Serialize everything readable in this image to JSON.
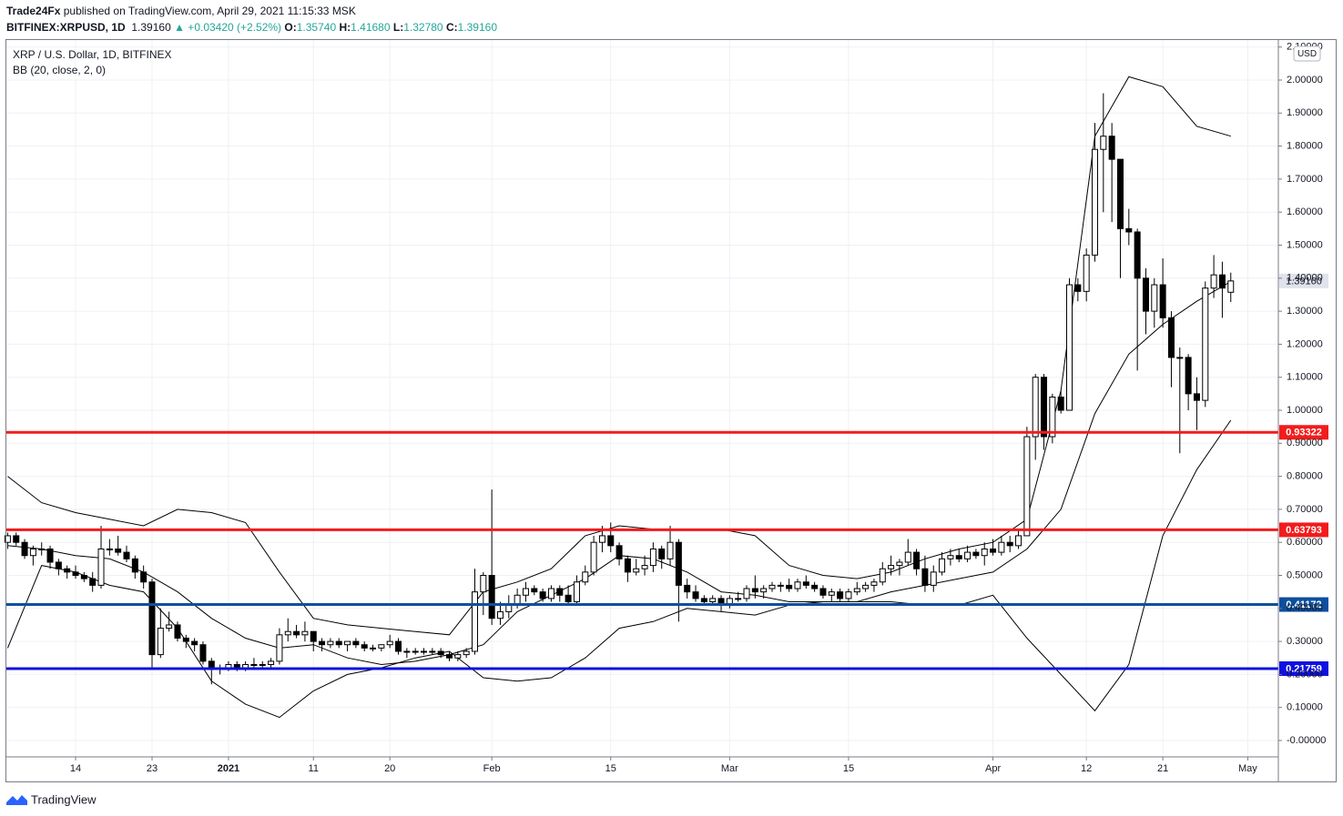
{
  "header": {
    "author": "Trade24Fx",
    "published": "published on TradingView.com, April 29, 2021 11:15:33 MSK",
    "symbol": "BITFINEX:XRPUSD, 1D",
    "change": "▲ +0.03420 (+2.52%)",
    "o_label": "O:",
    "o_value": "1.35740",
    "h_label": "H:",
    "h_value": "1.41680",
    "l_label": "L:",
    "l_value": "1.32780",
    "c_label": "C:",
    "c_value": "1.39160"
  },
  "footer": {
    "brand": "TradingView"
  },
  "chart_data": {
    "type": "candlestick",
    "title": "XRP / U.S. Dollar, 1D, BITFINEX",
    "currency": "USD",
    "up_color": "#ffffff",
    "down_color": "#000000",
    "grid": true,
    "last_price": {
      "value": 1.3916,
      "label": "1.39160"
    },
    "xlim": [
      -0.15,
      149.6
    ],
    "ylim": [
      -0.0496,
      2.1212
    ],
    "xticks": [
      {
        "value": 8,
        "label": "14"
      },
      {
        "value": 17,
        "label": "23"
      },
      {
        "value": 26,
        "label": "2021"
      },
      {
        "value": 36,
        "label": "11"
      },
      {
        "value": 45,
        "label": "20"
      },
      {
        "value": 57,
        "label": "Feb"
      },
      {
        "value": 71,
        "label": "15"
      },
      {
        "value": 85,
        "label": "Mar"
      },
      {
        "value": 99,
        "label": "15"
      },
      {
        "value": 116,
        "label": "Apr"
      },
      {
        "value": 127,
        "label": "12"
      },
      {
        "value": 136,
        "label": "21"
      },
      {
        "value": 146,
        "label": "May"
      }
    ],
    "yticks": [
      {
        "value": 0,
        "label": "-0.00000"
      },
      {
        "value": 0.1,
        "label": "0.10000"
      },
      {
        "value": 0.2,
        "label": "0.20000"
      },
      {
        "value": 0.3,
        "label": "0.30000"
      },
      {
        "value": 0.4,
        "label": "0.40000"
      },
      {
        "value": 0.5,
        "label": "0.50000"
      },
      {
        "value": 0.6,
        "label": "0.60000"
      },
      {
        "value": 0.7,
        "label": "0.70000"
      },
      {
        "value": 0.8,
        "label": "0.80000"
      },
      {
        "value": 0.9,
        "label": "0.90000"
      },
      {
        "value": 1.0,
        "label": "1.00000"
      },
      {
        "value": 1.1,
        "label": "1.10000"
      },
      {
        "value": 1.2,
        "label": "1.20000"
      },
      {
        "value": 1.3,
        "label": "1.30000"
      },
      {
        "value": 1.4,
        "label": "1.40000"
      },
      {
        "value": 1.5,
        "label": "1.50000"
      },
      {
        "value": 1.6,
        "label": "1.60000"
      },
      {
        "value": 1.7,
        "label": "1.70000"
      },
      {
        "value": 1.8,
        "label": "1.80000"
      },
      {
        "value": 1.9,
        "label": "1.90000"
      },
      {
        "value": 2.0,
        "label": "2.00000"
      },
      {
        "value": 2.1,
        "label": "2.10000"
      }
    ],
    "levels": [
      {
        "value": 0.93322,
        "label": "0.93322",
        "color": "#f21c1c"
      },
      {
        "value": 0.63793,
        "label": "0.63793",
        "color": "#f21c1c"
      },
      {
        "value": 0.41172,
        "label": "0.41172",
        "color": "#0d4f9e"
      },
      {
        "value": 0.21759,
        "label": "0.21759",
        "color": "#1010e0"
      }
    ],
    "x": [
      0,
      1,
      2,
      3,
      4,
      5,
      6,
      7,
      8,
      9,
      10,
      11,
      12,
      13,
      14,
      15,
      16,
      17,
      18,
      19,
      20,
      21,
      22,
      23,
      24,
      25,
      26,
      27,
      28,
      29,
      30,
      31,
      32,
      33,
      34,
      35,
      36,
      37,
      38,
      39,
      40,
      41,
      42,
      43,
      44,
      45,
      46,
      47,
      48,
      49,
      50,
      51,
      52,
      53,
      54,
      55,
      56,
      57,
      58,
      59,
      60,
      61,
      62,
      63,
      64,
      65,
      66,
      67,
      68,
      69,
      70,
      71,
      72,
      73,
      74,
      75,
      76,
      77,
      78,
      79,
      80,
      81,
      82,
      83,
      84,
      85,
      86,
      87,
      88,
      89,
      90,
      91,
      92,
      93,
      94,
      95,
      96,
      97,
      98,
      99,
      100,
      101,
      102,
      103,
      104,
      105,
      106,
      107,
      108,
      109,
      110,
      111,
      112,
      113,
      114,
      115,
      116,
      117,
      118,
      119,
      120,
      121,
      122,
      123,
      124,
      125,
      126,
      127,
      128,
      129,
      130,
      131,
      132,
      133,
      134,
      135,
      136,
      137,
      138,
      139,
      140,
      141,
      142,
      143,
      144
    ],
    "ohlc": [
      [
        0.6,
        0.63,
        0.58,
        0.62
      ],
      [
        0.62,
        0.63,
        0.59,
        0.6
      ],
      [
        0.6,
        0.61,
        0.55,
        0.56
      ],
      [
        0.56,
        0.59,
        0.53,
        0.58
      ],
      [
        0.58,
        0.6,
        0.56,
        0.58
      ],
      [
        0.58,
        0.59,
        0.52,
        0.54
      ],
      [
        0.54,
        0.55,
        0.5,
        0.52
      ],
      [
        0.52,
        0.53,
        0.49,
        0.51
      ],
      [
        0.51,
        0.53,
        0.49,
        0.5
      ],
      [
        0.5,
        0.51,
        0.48,
        0.49
      ],
      [
        0.49,
        0.51,
        0.45,
        0.47
      ],
      [
        0.47,
        0.65,
        0.46,
        0.58
      ],
      [
        0.58,
        0.61,
        0.56,
        0.58
      ],
      [
        0.58,
        0.62,
        0.56,
        0.57
      ],
      [
        0.57,
        0.59,
        0.54,
        0.55
      ],
      [
        0.55,
        0.56,
        0.49,
        0.51
      ],
      [
        0.51,
        0.53,
        0.46,
        0.48
      ],
      [
        0.48,
        0.49,
        0.22,
        0.26
      ],
      [
        0.26,
        0.4,
        0.25,
        0.34
      ],
      [
        0.34,
        0.39,
        0.33,
        0.35
      ],
      [
        0.35,
        0.36,
        0.3,
        0.31
      ],
      [
        0.31,
        0.32,
        0.28,
        0.3
      ],
      [
        0.3,
        0.31,
        0.27,
        0.29
      ],
      [
        0.29,
        0.3,
        0.23,
        0.24
      ],
      [
        0.24,
        0.25,
        0.17,
        0.22
      ],
      [
        0.22,
        0.23,
        0.2,
        0.22
      ],
      [
        0.22,
        0.24,
        0.21,
        0.23
      ],
      [
        0.23,
        0.24,
        0.21,
        0.22
      ],
      [
        0.22,
        0.24,
        0.21,
        0.23
      ],
      [
        0.23,
        0.25,
        0.22,
        0.23
      ],
      [
        0.23,
        0.24,
        0.22,
        0.23
      ],
      [
        0.23,
        0.25,
        0.22,
        0.24
      ],
      [
        0.24,
        0.34,
        0.23,
        0.32
      ],
      [
        0.32,
        0.37,
        0.3,
        0.33
      ],
      [
        0.33,
        0.35,
        0.31,
        0.32
      ],
      [
        0.32,
        0.36,
        0.3,
        0.33
      ],
      [
        0.33,
        0.33,
        0.27,
        0.3
      ],
      [
        0.3,
        0.31,
        0.27,
        0.29
      ],
      [
        0.29,
        0.31,
        0.28,
        0.3
      ],
      [
        0.3,
        0.31,
        0.28,
        0.29
      ],
      [
        0.29,
        0.3,
        0.27,
        0.3
      ],
      [
        0.3,
        0.31,
        0.28,
        0.29
      ],
      [
        0.29,
        0.3,
        0.27,
        0.28
      ],
      [
        0.28,
        0.29,
        0.27,
        0.28
      ],
      [
        0.28,
        0.29,
        0.27,
        0.29
      ],
      [
        0.29,
        0.32,
        0.28,
        0.3
      ],
      [
        0.3,
        0.31,
        0.26,
        0.27
      ],
      [
        0.27,
        0.28,
        0.25,
        0.27
      ],
      [
        0.27,
        0.28,
        0.26,
        0.27
      ],
      [
        0.27,
        0.28,
        0.26,
        0.27
      ],
      [
        0.27,
        0.28,
        0.26,
        0.27
      ],
      [
        0.27,
        0.28,
        0.25,
        0.26
      ],
      [
        0.26,
        0.27,
        0.24,
        0.25
      ],
      [
        0.25,
        0.27,
        0.24,
        0.26
      ],
      [
        0.26,
        0.28,
        0.25,
        0.27
      ],
      [
        0.27,
        0.52,
        0.26,
        0.45
      ],
      [
        0.45,
        0.51,
        0.38,
        0.5
      ],
      [
        0.5,
        0.76,
        0.35,
        0.37
      ],
      [
        0.37,
        0.42,
        0.35,
        0.39
      ],
      [
        0.39,
        0.44,
        0.37,
        0.41
      ],
      [
        0.41,
        0.46,
        0.4,
        0.44
      ],
      [
        0.44,
        0.48,
        0.42,
        0.46
      ],
      [
        0.46,
        0.47,
        0.44,
        0.45
      ],
      [
        0.45,
        0.46,
        0.42,
        0.43
      ],
      [
        0.43,
        0.47,
        0.42,
        0.46
      ],
      [
        0.46,
        0.47,
        0.42,
        0.44
      ],
      [
        0.44,
        0.47,
        0.41,
        0.42
      ],
      [
        0.42,
        0.5,
        0.41,
        0.48
      ],
      [
        0.48,
        0.53,
        0.47,
        0.51
      ],
      [
        0.51,
        0.62,
        0.5,
        0.6
      ],
      [
        0.6,
        0.65,
        0.57,
        0.62
      ],
      [
        0.62,
        0.66,
        0.57,
        0.59
      ],
      [
        0.59,
        0.6,
        0.53,
        0.55
      ],
      [
        0.55,
        0.56,
        0.48,
        0.51
      ],
      [
        0.51,
        0.55,
        0.5,
        0.52
      ],
      [
        0.52,
        0.56,
        0.5,
        0.53
      ],
      [
        0.53,
        0.6,
        0.51,
        0.58
      ],
      [
        0.58,
        0.59,
        0.52,
        0.55
      ],
      [
        0.55,
        0.65,
        0.53,
        0.6
      ],
      [
        0.6,
        0.61,
        0.36,
        0.47
      ],
      [
        0.47,
        0.49,
        0.43,
        0.45
      ],
      [
        0.45,
        0.47,
        0.42,
        0.43
      ],
      [
        0.43,
        0.44,
        0.41,
        0.42
      ],
      [
        0.42,
        0.44,
        0.41,
        0.43
      ],
      [
        0.43,
        0.44,
        0.39,
        0.41
      ],
      [
        0.41,
        0.44,
        0.4,
        0.43
      ],
      [
        0.43,
        0.45,
        0.42,
        0.43
      ],
      [
        0.43,
        0.47,
        0.42,
        0.46
      ],
      [
        0.46,
        0.5,
        0.43,
        0.45
      ],
      [
        0.45,
        0.47,
        0.43,
        0.46
      ],
      [
        0.46,
        0.48,
        0.45,
        0.47
      ],
      [
        0.47,
        0.48,
        0.45,
        0.47
      ],
      [
        0.47,
        0.49,
        0.45,
        0.46
      ],
      [
        0.46,
        0.49,
        0.45,
        0.48
      ],
      [
        0.48,
        0.5,
        0.46,
        0.47
      ],
      [
        0.47,
        0.48,
        0.45,
        0.46
      ],
      [
        0.46,
        0.47,
        0.43,
        0.44
      ],
      [
        0.44,
        0.46,
        0.42,
        0.45
      ],
      [
        0.45,
        0.46,
        0.42,
        0.43
      ],
      [
        0.43,
        0.46,
        0.42,
        0.45
      ],
      [
        0.45,
        0.48,
        0.44,
        0.46
      ],
      [
        0.46,
        0.48,
        0.45,
        0.47
      ],
      [
        0.47,
        0.49,
        0.45,
        0.48
      ],
      [
        0.48,
        0.54,
        0.47,
        0.52
      ],
      [
        0.52,
        0.56,
        0.5,
        0.53
      ],
      [
        0.53,
        0.55,
        0.5,
        0.54
      ],
      [
        0.54,
        0.61,
        0.53,
        0.57
      ],
      [
        0.57,
        0.58,
        0.5,
        0.52
      ],
      [
        0.52,
        0.56,
        0.45,
        0.47
      ],
      [
        0.47,
        0.53,
        0.45,
        0.51
      ],
      [
        0.51,
        0.57,
        0.5,
        0.55
      ],
      [
        0.55,
        0.58,
        0.53,
        0.56
      ],
      [
        0.56,
        0.58,
        0.54,
        0.55
      ],
      [
        0.55,
        0.59,
        0.54,
        0.57
      ],
      [
        0.57,
        0.58,
        0.55,
        0.56
      ],
      [
        0.56,
        0.6,
        0.53,
        0.58
      ],
      [
        0.58,
        0.61,
        0.56,
        0.57
      ],
      [
        0.57,
        0.62,
        0.56,
        0.6
      ],
      [
        0.6,
        0.62,
        0.57,
        0.59
      ],
      [
        0.59,
        0.64,
        0.58,
        0.62
      ],
      [
        0.62,
        0.95,
        0.62,
        0.92
      ],
      [
        0.92,
        1.11,
        0.85,
        1.1
      ],
      [
        1.1,
        1.11,
        0.88,
        0.92
      ],
      [
        0.92,
        1.05,
        0.9,
        1.04
      ],
      [
        1.04,
        1.06,
        0.99,
        1.0
      ],
      [
        1.0,
        1.4,
        1.0,
        1.38
      ],
      [
        1.38,
        1.4,
        1.33,
        1.36
      ],
      [
        1.36,
        1.49,
        1.33,
        1.47
      ],
      [
        1.47,
        1.87,
        1.45,
        1.79
      ],
      [
        1.79,
        1.96,
        1.6,
        1.83
      ],
      [
        1.83,
        1.87,
        1.57,
        1.76
      ],
      [
        1.76,
        1.76,
        1.4,
        1.55
      ],
      [
        1.55,
        1.61,
        1.5,
        1.54
      ],
      [
        1.54,
        1.55,
        1.12,
        1.4
      ],
      [
        1.4,
        1.43,
        1.23,
        1.3
      ],
      [
        1.3,
        1.4,
        1.25,
        1.38
      ],
      [
        1.38,
        1.46,
        1.25,
        1.28
      ],
      [
        1.28,
        1.3,
        1.07,
        1.16
      ],
      [
        1.16,
        1.19,
        0.87,
        1.16
      ],
      [
        1.16,
        1.17,
        1.0,
        1.05
      ],
      [
        1.05,
        1.1,
        0.94,
        1.03
      ],
      [
        1.03,
        1.39,
        1.01,
        1.37
      ],
      [
        1.37,
        1.47,
        1.34,
        1.41
      ],
      [
        1.41,
        1.45,
        1.28,
        1.37
      ],
      [
        1.3574,
        1.4168,
        1.3278,
        1.3916
      ]
    ],
    "bollinger": {
      "label": "BB (20, close, 2, 0)",
      "color": "#000000",
      "x": [
        0,
        4,
        8,
        12,
        16,
        20,
        24,
        28,
        32,
        36,
        40,
        44,
        48,
        52,
        56,
        60,
        64,
        68,
        72,
        76,
        80,
        84,
        88,
        92,
        96,
        100,
        104,
        108,
        112,
        116,
        120,
        124,
        128,
        132,
        136,
        140,
        144
      ],
      "upper": [
        0.8,
        0.72,
        0.69,
        0.67,
        0.65,
        0.7,
        0.69,
        0.66,
        0.51,
        0.37,
        0.35,
        0.34,
        0.33,
        0.32,
        0.45,
        0.48,
        0.52,
        0.62,
        0.65,
        0.64,
        0.64,
        0.64,
        0.62,
        0.53,
        0.5,
        0.49,
        0.51,
        0.55,
        0.58,
        0.6,
        0.67,
        1.06,
        1.83,
        2.01,
        1.98,
        1.86,
        1.83
      ],
      "basis": [
        0.59,
        0.58,
        0.56,
        0.55,
        0.51,
        0.45,
        0.37,
        0.31,
        0.28,
        0.29,
        0.25,
        0.23,
        0.24,
        0.26,
        0.29,
        0.39,
        0.44,
        0.49,
        0.56,
        0.55,
        0.51,
        0.45,
        0.44,
        0.42,
        0.42,
        0.42,
        0.45,
        0.47,
        0.49,
        0.51,
        0.58,
        0.7,
        0.99,
        1.17,
        1.26,
        1.33,
        1.39
      ],
      "lower": [
        0.28,
        0.53,
        0.51,
        0.47,
        0.45,
        0.34,
        0.18,
        0.11,
        0.07,
        0.15,
        0.2,
        0.22,
        0.25,
        0.27,
        0.19,
        0.18,
        0.19,
        0.25,
        0.34,
        0.36,
        0.4,
        0.39,
        0.38,
        0.41,
        0.42,
        0.42,
        0.42,
        0.41,
        0.41,
        0.44,
        0.31,
        0.2,
        0.09,
        0.23,
        0.62,
        0.82,
        0.97
      ]
    }
  }
}
